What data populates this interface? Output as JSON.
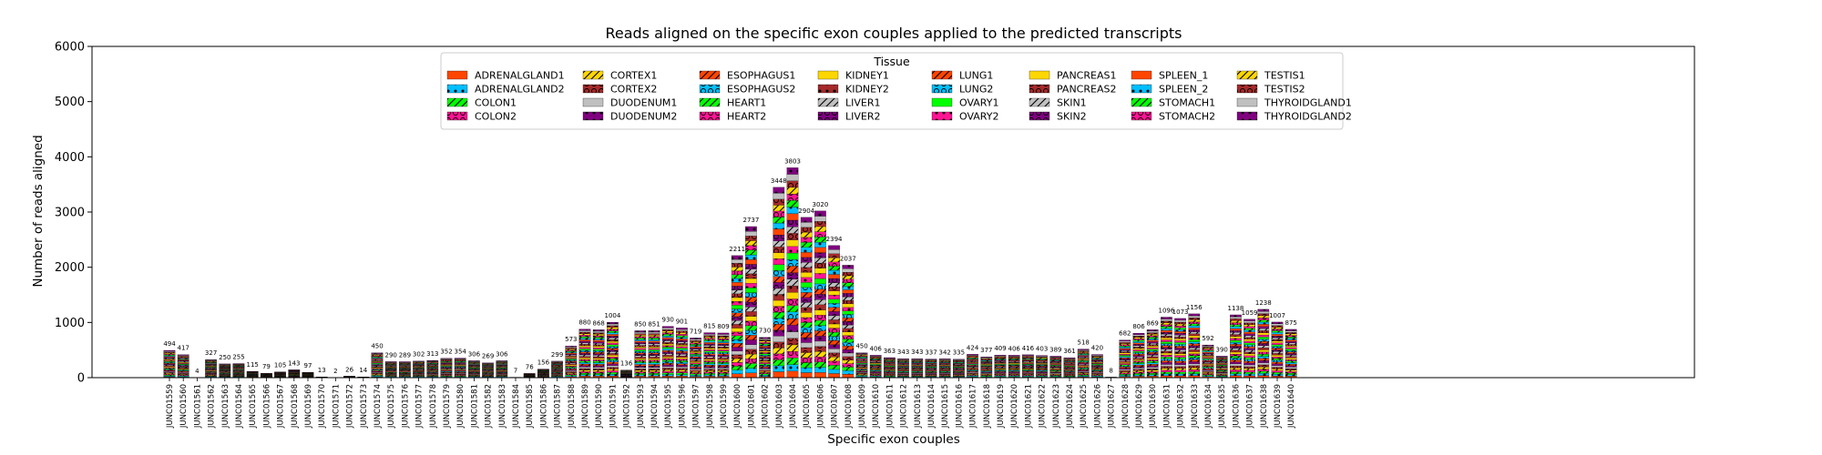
{
  "chart_data": {
    "type": "bar",
    "stacked": true,
    "title": "Reads aligned on the specific exon couples applied to the predicted transcripts",
    "xlabel": "Specific exon couples",
    "ylabel": "Number of reads aligned",
    "ylim": [
      0,
      6000
    ],
    "yticks": [
      0,
      1000,
      2000,
      3000,
      4000,
      5000,
      6000
    ],
    "grid": false,
    "legend": {
      "title": "Tissue",
      "placement": "top-center",
      "ncol": 8,
      "entries": [
        {
          "name": "ADRENALGLAND1",
          "color": "#ff4500",
          "hatch": "none"
        },
        {
          "name": "ADRENALGLAND2",
          "color": "#00bfff",
          "hatch": "dot"
        },
        {
          "name": "COLON1",
          "color": "#00ff00",
          "hatch": "slash"
        },
        {
          "name": "COLON2",
          "color": "#ff1493",
          "hatch": "circle"
        },
        {
          "name": "CORTEX1",
          "color": "#ffd700",
          "hatch": "slash"
        },
        {
          "name": "CORTEX2",
          "color": "#a52a2a",
          "hatch": "circle"
        },
        {
          "name": "DUODENUM1",
          "color": "#c0c0c0",
          "hatch": "none"
        },
        {
          "name": "DUODENUM2",
          "color": "#800080",
          "hatch": "dot"
        },
        {
          "name": "ESOPHAGUS1",
          "color": "#ff4500",
          "hatch": "slash"
        },
        {
          "name": "ESOPHAGUS2",
          "color": "#00bfff",
          "hatch": "circle"
        },
        {
          "name": "HEART1",
          "color": "#00ff00",
          "hatch": "slash"
        },
        {
          "name": "HEART2",
          "color": "#ff1493",
          "hatch": "circle"
        },
        {
          "name": "KIDNEY1",
          "color": "#ffd700",
          "hatch": "none"
        },
        {
          "name": "KIDNEY2",
          "color": "#a52a2a",
          "hatch": "dot"
        },
        {
          "name": "LIVER1",
          "color": "#c0c0c0",
          "hatch": "slash"
        },
        {
          "name": "LIVER2",
          "color": "#800080",
          "hatch": "circle"
        },
        {
          "name": "LUNG1",
          "color": "#ff4500",
          "hatch": "slash"
        },
        {
          "name": "LUNG2",
          "color": "#00bfff",
          "hatch": "circle"
        },
        {
          "name": "OVARY1",
          "color": "#00ff00",
          "hatch": "none"
        },
        {
          "name": "OVARY2",
          "color": "#ff1493",
          "hatch": "dot"
        },
        {
          "name": "PANCREAS1",
          "color": "#ffd700",
          "hatch": "none"
        },
        {
          "name": "PANCREAS2",
          "color": "#a52a2a",
          "hatch": "circle"
        },
        {
          "name": "SKIN1",
          "color": "#c0c0c0",
          "hatch": "slash"
        },
        {
          "name": "SKIN2",
          "color": "#800080",
          "hatch": "circle"
        },
        {
          "name": "SPLEEN_1",
          "color": "#ff4500",
          "hatch": "none"
        },
        {
          "name": "SPLEEN_2",
          "color": "#00bfff",
          "hatch": "dot"
        },
        {
          "name": "STOMACH1",
          "color": "#00ff00",
          "hatch": "slash"
        },
        {
          "name": "STOMACH2",
          "color": "#ff1493",
          "hatch": "circle"
        },
        {
          "name": "TESTIS1",
          "color": "#ffd700",
          "hatch": "slash"
        },
        {
          "name": "TESTIS2",
          "color": "#a52a2a",
          "hatch": "circle"
        },
        {
          "name": "THYROIDGLAND1",
          "color": "#c0c0c0",
          "hatch": "none"
        },
        {
          "name": "THYROIDGLAND2",
          "color": "#800080",
          "hatch": "dot"
        }
      ]
    },
    "categories": [
      "JUNC01559",
      "JUNC01560",
      "JUNC01561",
      "JUNC01562",
      "JUNC01563",
      "JUNC01564",
      "JUNC01565",
      "JUNC01566",
      "JUNC01567",
      "JUNC01568",
      "JUNC01569",
      "JUNC01570",
      "JUNC01571",
      "JUNC01572",
      "JUNC01573",
      "JUNC01574",
      "JUNC01575",
      "JUNC01576",
      "JUNC01577",
      "JUNC01578",
      "JUNC01579",
      "JUNC01580",
      "JUNC01581",
      "JUNC01582",
      "JUNC01583",
      "JUNC01584",
      "JUNC01585",
      "JUNC01586",
      "JUNC01587",
      "JUNC01588",
      "JUNC01589",
      "JUNC01590",
      "JUNC01591",
      "JUNC01592",
      "JUNC01593",
      "JUNC01594",
      "JUNC01595",
      "JUNC01596",
      "JUNC01597",
      "JUNC01598",
      "JUNC01599",
      "JUNC01600",
      "JUNC01601",
      "JUNC01602",
      "JUNC01603",
      "JUNC01604",
      "JUNC01605",
      "JUNC01606",
      "JUNC01607",
      "JUNC01608",
      "JUNC01609",
      "JUNC01610",
      "JUNC01611",
      "JUNC01612",
      "JUNC01613",
      "JUNC01614",
      "JUNC01615",
      "JUNC01616",
      "JUNC01617",
      "JUNC01618",
      "JUNC01619",
      "JUNC01620",
      "JUNC01621",
      "JUNC01622",
      "JUNC01623",
      "JUNC01624",
      "JUNC01625",
      "JUNC01626",
      "JUNC01627",
      "JUNC01628",
      "JUNC01629",
      "JUNC01630",
      "JUNC01631",
      "JUNC01632",
      "JUNC01633",
      "JUNC01634",
      "JUNC01635",
      "JUNC01636",
      "JUNC01637",
      "JUNC01638",
      "JUNC01639",
      "JUNC01640"
    ],
    "totals": [
      494,
      417,
      4,
      327,
      250,
      255,
      115,
      79,
      105,
      143,
      97,
      13,
      2,
      26,
      14,
      450,
      290,
      289,
      302,
      313,
      352,
      354,
      306,
      269,
      306,
      7,
      76,
      156,
      299,
      573,
      880,
      868,
      1004,
      136,
      850,
      851,
      930,
      901,
      719,
      815,
      809,
      2211,
      2737,
      730,
      3448,
      3803,
      2904,
      3020,
      2394,
      2037,
      450,
      406,
      363,
      343,
      343,
      337,
      342,
      335,
      424,
      377,
      409,
      406,
      416,
      403,
      389,
      361,
      518,
      420,
      8,
      682,
      806,
      869,
      1096,
      1073,
      1156,
      592,
      390,
      1138,
      1059,
      1238,
      1007,
      875
    ]
  }
}
